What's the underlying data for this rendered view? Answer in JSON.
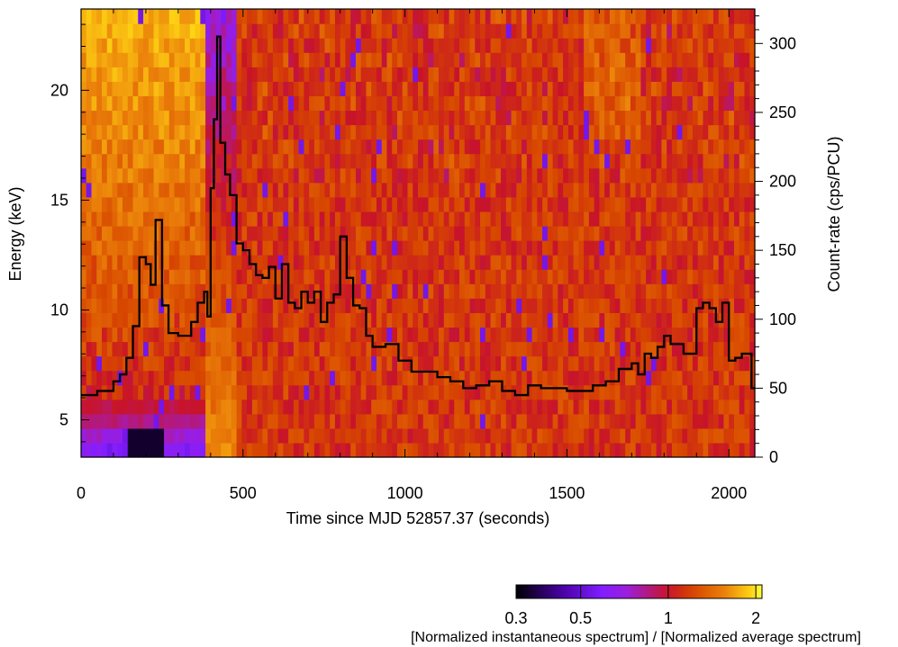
{
  "chart_data": {
    "type": "heatmap",
    "xlabel": "Time since MJD 52857.37 (seconds)",
    "ylabel_left": "Energy (keV)",
    "ylabel_right": "Count-rate (cps/PCU)",
    "colorbar_label": "[Normalized instantaneous spectrum] / [Normalized average spectrum]",
    "xlim": [
      0,
      2080
    ],
    "ylim_left": [
      3.3,
      23.7
    ],
    "ylim_right": [
      0,
      325
    ],
    "x_ticks": [
      0,
      500,
      1000,
      1500,
      2000
    ],
    "y_ticks_left": [
      5,
      10,
      15,
      20
    ],
    "y_ticks_right": [
      0,
      50,
      100,
      150,
      200,
      250,
      300
    ],
    "colorbar_ticks": [
      "0.3",
      "0.5",
      "1",
      "2"
    ],
    "colorbar_tick_values": [
      0.3,
      0.5,
      1,
      2
    ],
    "colorbar_range": [
      0.3,
      2.1
    ],
    "heatmap_rows": 31,
    "heatmap_bin_seconds": 16,
    "count_rate": {
      "name": "Count-rate",
      "style": "step",
      "t": [
        0,
        50,
        100,
        120,
        140,
        160,
        180,
        200,
        215,
        230,
        250,
        270,
        300,
        340,
        360,
        380,
        390,
        400,
        410,
        420,
        430,
        445,
        460,
        480,
        500,
        520,
        540,
        560,
        580,
        600,
        620,
        640,
        660,
        680,
        700,
        720,
        740,
        760,
        780,
        800,
        820,
        840,
        860,
        880,
        900,
        940,
        980,
        1020,
        1060,
        1100,
        1140,
        1180,
        1220,
        1260,
        1300,
        1340,
        1380,
        1420,
        1450,
        1500,
        1540,
        1580,
        1620,
        1660,
        1700,
        1720,
        1740,
        1760,
        1780,
        1800,
        1820,
        1860,
        1900,
        1920,
        1940,
        1960,
        1980,
        2000,
        2020,
        2040,
        2070
      ],
      "rate": [
        45,
        48,
        55,
        60,
        72,
        95,
        145,
        140,
        125,
        172,
        110,
        90,
        88,
        98,
        112,
        120,
        102,
        195,
        245,
        305,
        228,
        205,
        190,
        155,
        150,
        140,
        132,
        130,
        138,
        115,
        140,
        112,
        108,
        120,
        112,
        120,
        98,
        112,
        118,
        160,
        130,
        110,
        108,
        88,
        80,
        82,
        70,
        62,
        62,
        58,
        55,
        50,
        52,
        55,
        48,
        45,
        52,
        50,
        50,
        48,
        48,
        52,
        55,
        64,
        68,
        60,
        75,
        72,
        80,
        88,
        82,
        75,
        108,
        112,
        108,
        98,
        112,
        70,
        72,
        75,
        50
      ]
    }
  }
}
